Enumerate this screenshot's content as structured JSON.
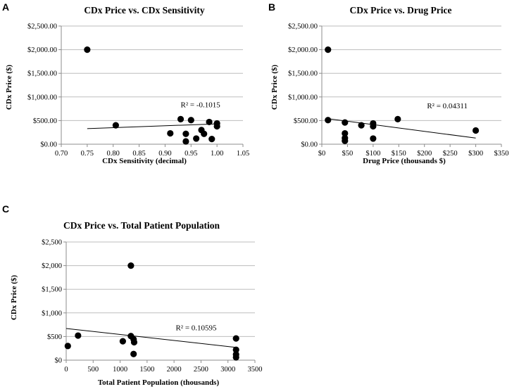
{
  "chart_data": [
    {
      "panel": "A",
      "type": "scatter",
      "title": "CDx Price vs. CDx Sensitivity",
      "xlabel": "CDx Sensitivity (decimal)",
      "ylabel": "CDx Price ($)",
      "xlim": [
        0.7,
        1.05
      ],
      "ylim": [
        0,
        2500
      ],
      "xticks": [
        0.7,
        0.75,
        0.8,
        0.85,
        0.9,
        0.95,
        1.0,
        1.05
      ],
      "xtick_labels": [
        "0.70",
        "0.75",
        "0.80",
        "0.85",
        "0.90",
        "0.95",
        "1.00",
        "1.05"
      ],
      "yticks": [
        0,
        500,
        1000,
        1500,
        2000,
        2500
      ],
      "ytick_labels": [
        "$0.00",
        "$500.00",
        "$1,000.00",
        "$1,500.00",
        "$2,000.00",
        "$2,500.00"
      ],
      "points": [
        {
          "x": 0.75,
          "y": 2000
        },
        {
          "x": 0.805,
          "y": 400
        },
        {
          "x": 0.91,
          "y": 230
        },
        {
          "x": 0.93,
          "y": 530
        },
        {
          "x": 0.94,
          "y": 220
        },
        {
          "x": 0.94,
          "y": 60
        },
        {
          "x": 0.95,
          "y": 510
        },
        {
          "x": 0.96,
          "y": 120
        },
        {
          "x": 0.97,
          "y": 300
        },
        {
          "x": 0.975,
          "y": 220
        },
        {
          "x": 0.985,
          "y": 470
        },
        {
          "x": 0.99,
          "y": 110
        },
        {
          "x": 1.0,
          "y": 440
        },
        {
          "x": 1.0,
          "y": 380
        }
      ],
      "trendline": {
        "x": [
          0.75,
          1.0
        ],
        "y": [
          330,
          430
        ]
      },
      "annotation": "R² = -0.1015",
      "annotation_at": {
        "x": 0.93,
        "y": 840
      }
    },
    {
      "panel": "B",
      "type": "scatter",
      "title": "CDx Price vs. Drug Price",
      "xlabel": "Drug Price (thousands $)",
      "ylabel": "CDx Price ($)",
      "xlim": [
        0,
        350
      ],
      "ylim": [
        0,
        2500
      ],
      "xticks": [
        0,
        50,
        100,
        150,
        200,
        250,
        300,
        350
      ],
      "xtick_labels": [
        "$0",
        "$50",
        "$100",
        "$150",
        "$200",
        "$250",
        "$300",
        "$350"
      ],
      "yticks": [
        0,
        500,
        1000,
        1500,
        2000,
        2500
      ],
      "ytick_labels": [
        "$0.00",
        "$500.00",
        "$1,000.00",
        "$1,500.00",
        "$2,000.00",
        "$2,500.00"
      ],
      "points": [
        {
          "x": 12,
          "y": 2000
        },
        {
          "x": 12,
          "y": 510
        },
        {
          "x": 45,
          "y": 460
        },
        {
          "x": 45,
          "y": 230
        },
        {
          "x": 45,
          "y": 130
        },
        {
          "x": 45,
          "y": 70
        },
        {
          "x": 77,
          "y": 400
        },
        {
          "x": 100,
          "y": 440
        },
        {
          "x": 100,
          "y": 380
        },
        {
          "x": 100,
          "y": 120
        },
        {
          "x": 148,
          "y": 530
        },
        {
          "x": 300,
          "y": 290
        }
      ],
      "trendline": {
        "x": [
          12,
          300
        ],
        "y": [
          540,
          130
        ]
      },
      "annotation": "R² = 0.04311",
      "annotation_at": {
        "x": 205,
        "y": 820
      }
    },
    {
      "panel": "C",
      "type": "scatter",
      "title": "CDx Price vs. Total Patient Population",
      "xlabel": "Total Patient Population (thousands)",
      "ylabel": "CDx Price ($)",
      "xlim": [
        0,
        3500
      ],
      "ylim": [
        0,
        2500
      ],
      "xticks": [
        0,
        500,
        1000,
        1500,
        2000,
        2500,
        3000,
        3500
      ],
      "xtick_labels": [
        "0",
        "500",
        "1000",
        "1500",
        "2000",
        "2500",
        "3000",
        "3500"
      ],
      "yticks": [
        0,
        500,
        1000,
        1500,
        2000,
        2500
      ],
      "ytick_labels": [
        "$0",
        "$500",
        "$1,000",
        "$1,500",
        "$2,000",
        "$2,500"
      ],
      "points": [
        {
          "x": 30,
          "y": 300
        },
        {
          "x": 220,
          "y": 520
        },
        {
          "x": 1050,
          "y": 400
        },
        {
          "x": 1200,
          "y": 2000
        },
        {
          "x": 1200,
          "y": 510
        },
        {
          "x": 1250,
          "y": 440
        },
        {
          "x": 1260,
          "y": 380
        },
        {
          "x": 1250,
          "y": 130
        },
        {
          "x": 3150,
          "y": 460
        },
        {
          "x": 3150,
          "y": 220
        },
        {
          "x": 3150,
          "y": 120
        },
        {
          "x": 3150,
          "y": 60
        }
      ],
      "trendline": {
        "x": [
          0,
          3150
        ],
        "y": [
          670,
          270
        ]
      },
      "annotation": "R² = 0.10595",
      "annotation_at": {
        "x": 2030,
        "y": 690
      }
    }
  ]
}
